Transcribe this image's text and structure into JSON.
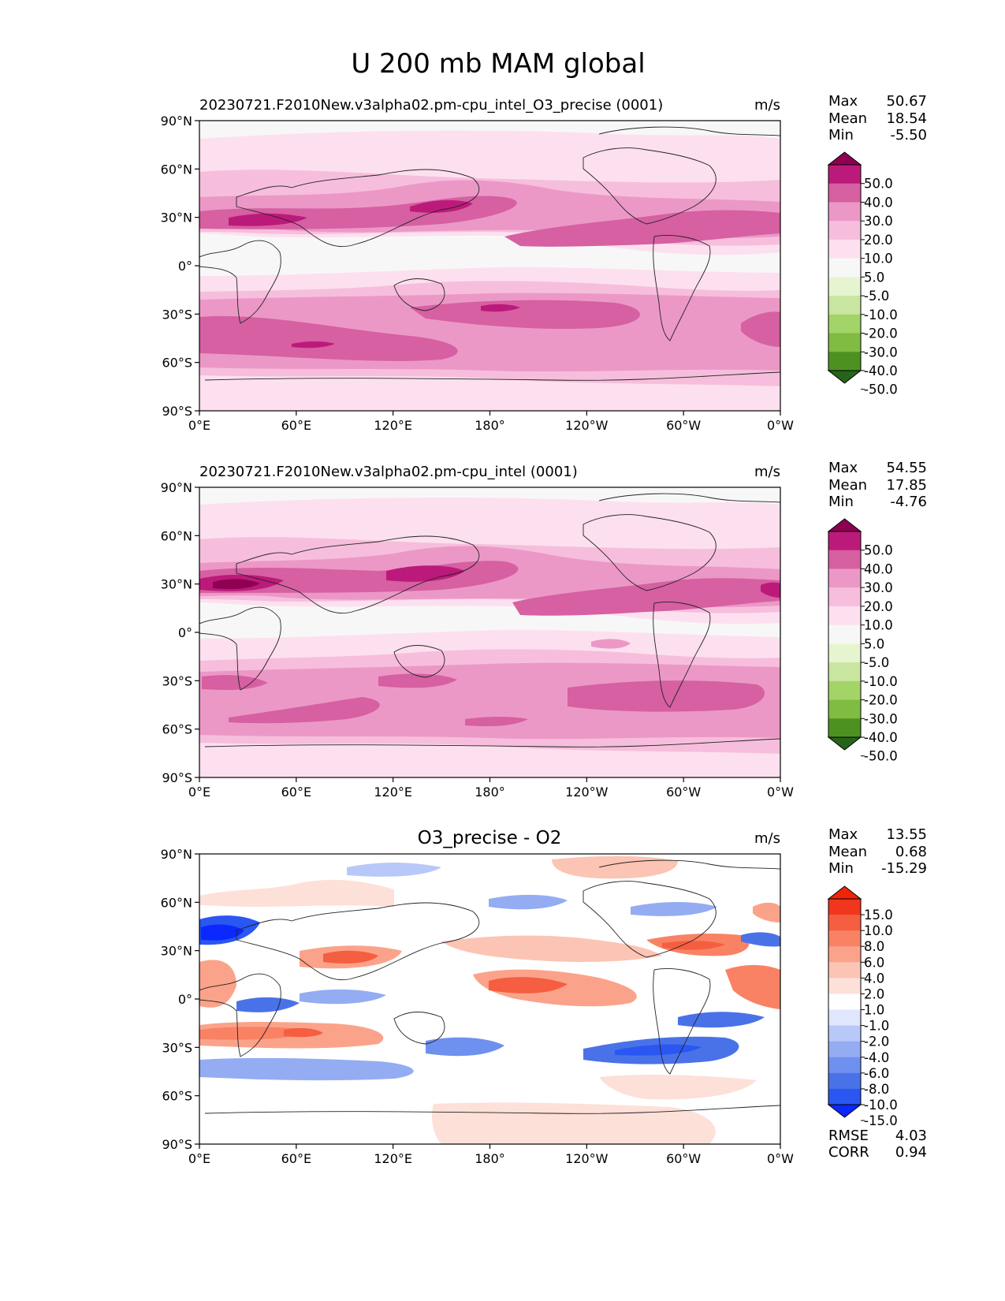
{
  "title": "U 200 mb MAM global",
  "axes": {
    "x_ticks": [
      "0°E",
      "60°E",
      "120°E",
      "180°",
      "120°W",
      "60°W",
      "0°W"
    ],
    "y_ticks": [
      "90°N",
      "60°N",
      "30°N",
      "0°",
      "30°S",
      "60°S",
      "90°S"
    ]
  },
  "colors": {
    "field_levels": [
      "#276419",
      "#4d9221",
      "#7fbc41",
      "#a3d468",
      "#c8e6a0",
      "#e6f5d0",
      "#f7f7f7",
      "#fde0ef",
      "#f6bedc",
      "#ec98c7",
      "#d660a2",
      "#bc1a7a",
      "#8e0152"
    ],
    "diff_levels": [
      "#0a28ff",
      "#2a56f2",
      "#4a72e8",
      "#6e90ee",
      "#94acf2",
      "#b8c8f8",
      "#dfe6fd",
      "#ffffff",
      "#fde0d8",
      "#fcc4b4",
      "#fba38a",
      "#f98264",
      "#f55e40",
      "#f0361c",
      "#f22408"
    ]
  },
  "chart_data": [
    {
      "type": "heatmap",
      "subtitle": "20230721.F2010New.v3alpha02.pm-cpu_intel_O3_precise (0001)",
      "units": "m/s",
      "stats": {
        "max_label": "Max",
        "max": "50.67",
        "mean_label": "Mean",
        "mean": "18.54",
        "min_label": "Min",
        "min": "-5.50"
      },
      "colorbar": {
        "levels": [
          -50,
          -40,
          -30,
          -20,
          -10,
          -5,
          5,
          10,
          20,
          30,
          40,
          50
        ],
        "labels": [
          "50.0",
          "40.0",
          "30.0",
          "20.0",
          "10.0",
          "5.0",
          "-5.0",
          "-10.0",
          "-20.0",
          "-30.0",
          "-40.0",
          "-50.0"
        ]
      },
      "xlim": [
        0,
        360
      ],
      "ylim": [
        -90,
        90
      ]
    },
    {
      "type": "heatmap",
      "subtitle": "20230721.F2010New.v3alpha02.pm-cpu_intel (0001)",
      "units": "m/s",
      "stats": {
        "max_label": "Max",
        "max": "54.55",
        "mean_label": "Mean",
        "mean": "17.85",
        "min_label": "Min",
        "min": "-4.76"
      },
      "colorbar": {
        "levels": [
          -50,
          -40,
          -30,
          -20,
          -10,
          -5,
          5,
          10,
          20,
          30,
          40,
          50
        ],
        "labels": [
          "50.0",
          "40.0",
          "30.0",
          "20.0",
          "10.0",
          "5.0",
          "-5.0",
          "-10.0",
          "-20.0",
          "-30.0",
          "-40.0",
          "-50.0"
        ]
      },
      "xlim": [
        0,
        360
      ],
      "ylim": [
        -90,
        90
      ]
    },
    {
      "type": "heatmap",
      "subtitle": "O3_precise - O2",
      "units": "m/s",
      "stats": {
        "max_label": "Max",
        "max": "13.55",
        "mean_label": "Mean",
        "mean": "0.68",
        "min_label": "Min",
        "min": "-15.29",
        "rmse_label": "RMSE",
        "rmse": "4.03",
        "corr_label": "CORR",
        "corr": "0.94"
      },
      "colorbar": {
        "levels": [
          -15,
          -10,
          -8,
          -6,
          -4,
          -2,
          -1,
          1,
          2,
          4,
          6,
          8,
          10,
          15
        ],
        "labels": [
          "15.0",
          "10.0",
          "8.0",
          "6.0",
          "4.0",
          "2.0",
          "1.0",
          "-1.0",
          "-2.0",
          "-4.0",
          "-6.0",
          "-8.0",
          "-10.0",
          "-15.0"
        ]
      },
      "xlim": [
        0,
        360
      ],
      "ylim": [
        -90,
        90
      ]
    }
  ]
}
